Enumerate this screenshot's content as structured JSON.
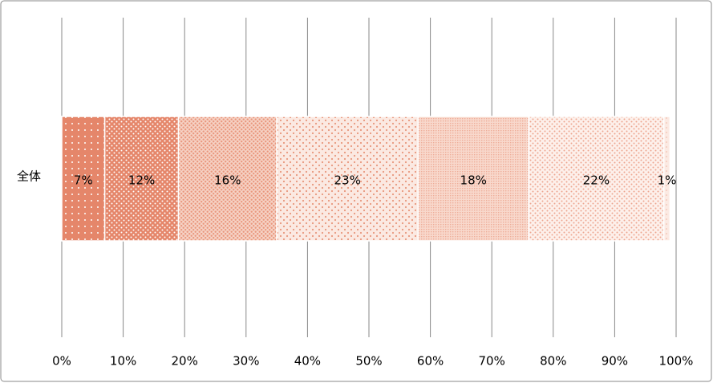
{
  "chart_data": {
    "type": "stacked-bar-horizontal",
    "categories": [
      "全体"
    ],
    "series": [
      {
        "color": "#e5866a",
        "values": [
          7
        ],
        "value_labels": [
          "7%"
        ]
      },
      {
        "color": "#e5866a",
        "values": [
          12
        ],
        "value_labels": [
          "12%"
        ]
      },
      {
        "color": "#e9977d",
        "values": [
          16
        ],
        "value_labels": [
          "16%"
        ]
      },
      {
        "color": "#e9977d",
        "values": [
          23
        ],
        "value_labels": [
          "23%"
        ]
      },
      {
        "color": "#eda58f",
        "values": [
          18
        ],
        "value_labels": [
          "18%"
        ]
      },
      {
        "color": "#eda58f",
        "values": [
          22
        ],
        "value_labels": [
          "22%"
        ]
      },
      {
        "color": "#f0b4a2",
        "values": [
          1
        ],
        "value_labels": [
          "1%"
        ]
      }
    ],
    "xlim": [
      0,
      100
    ],
    "xticks": [
      {
        "value": 0,
        "label": "0%"
      },
      {
        "value": 10,
        "label": "10%"
      },
      {
        "value": 20,
        "label": "20%"
      },
      {
        "value": 30,
        "label": "30%"
      },
      {
        "value": 40,
        "label": "40%"
      },
      {
        "value": 50,
        "label": "50%"
      },
      {
        "value": 60,
        "label": "60%"
      },
      {
        "value": 70,
        "label": "70%"
      },
      {
        "value": 80,
        "label": "80%"
      },
      {
        "value": 90,
        "label": "90%"
      },
      {
        "value": 100,
        "label": "100%"
      }
    ],
    "grid": true
  }
}
